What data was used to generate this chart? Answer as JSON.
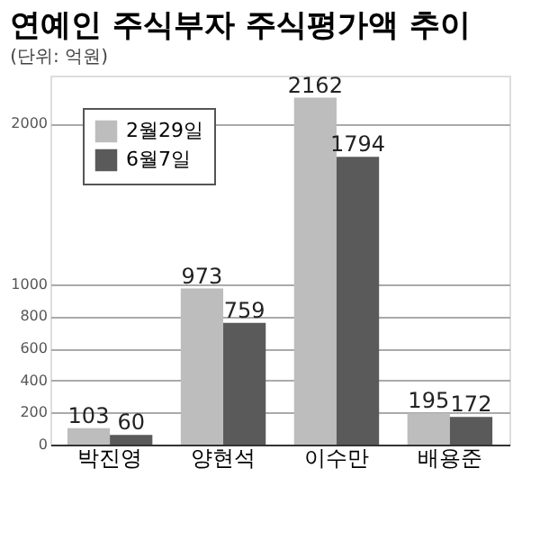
{
  "chart_data": {
    "type": "bar",
    "title": "연예인 주식부자 주식평가액 추이",
    "subtitle": "(단위: 억원)",
    "categories": [
      "박진영",
      "양현석",
      "이수만",
      "배용준"
    ],
    "series": [
      {
        "name": "2월29일",
        "color": "#bdbdbd",
        "values": [
          103,
          973,
          2162,
          195
        ]
      },
      {
        "name": "6월7일",
        "color": "#5a5a5a",
        "values": [
          60,
          759,
          1794,
          172
        ]
      }
    ],
    "ylim": [
      0,
      2300
    ],
    "yticks": [
      0,
      200,
      400,
      600,
      800,
      1000,
      2000
    ],
    "grid": "y",
    "legend": "top left",
    "data_labels": true
  }
}
